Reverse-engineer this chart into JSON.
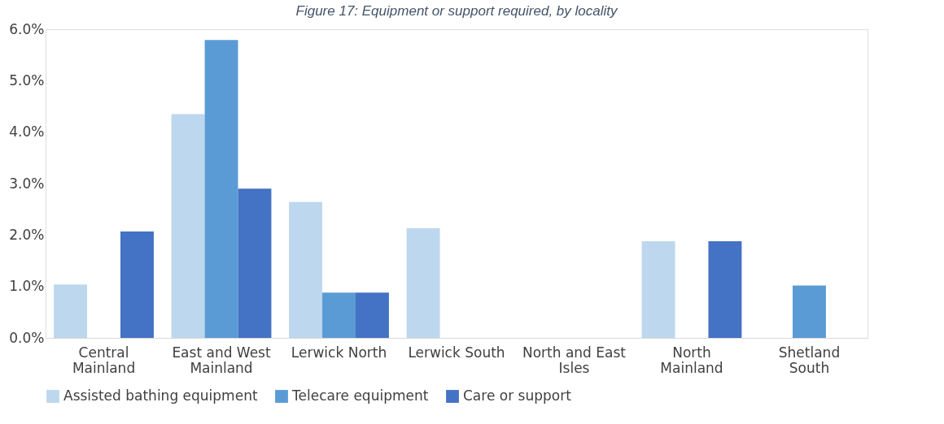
{
  "chart_data": {
    "type": "bar",
    "title": "Figure 17: Equipment or support required, by locality",
    "categories": [
      "Central Mainland",
      "East and West Mainland",
      "Lerwick North",
      "Lerwick South",
      "North and East Isles",
      "North Mainland",
      "Shetland South"
    ],
    "series": [
      {
        "name": "Assisted bathing equipment",
        "color": "#bdd7ee",
        "values": [
          1.04,
          4.35,
          2.64,
          2.13,
          0,
          1.88,
          0
        ]
      },
      {
        "name": "Telecare equipment",
        "color": "#5b9bd5",
        "values": [
          0,
          5.79,
          0.88,
          0,
          0,
          0,
          1.02
        ]
      },
      {
        "name": "Care or support",
        "color": "#4472c4",
        "values": [
          2.07,
          2.9,
          0.88,
          0,
          0,
          1.88,
          0
        ]
      }
    ],
    "ylim": [
      0,
      6
    ],
    "yticks": [
      {
        "value": 0,
        "label": "0.0%"
      },
      {
        "value": 1,
        "label": "1.0%"
      },
      {
        "value": 2,
        "label": "2.0%"
      },
      {
        "value": 3,
        "label": "3.0%"
      },
      {
        "value": 4,
        "label": "4.0%"
      },
      {
        "value": 5,
        "label": "5.0%"
      },
      {
        "value": 6,
        "label": "6.0%"
      }
    ],
    "grid": false,
    "legend": "bottom"
  }
}
